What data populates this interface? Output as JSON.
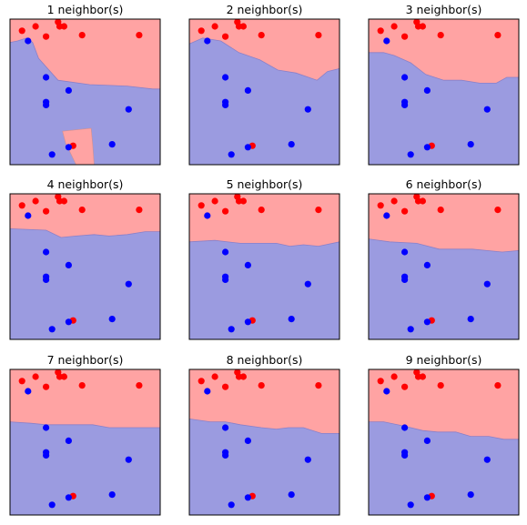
{
  "chart_data": {
    "type": "scatter",
    "description_of_kind": "k-nearest-neighbors decision boundaries",
    "class_colors": {
      "red": "#ff0000",
      "blue": "#0000ff"
    },
    "region_colors": {
      "red": "#ffa3a3",
      "blue": "#9b9be0"
    },
    "xlim": [
      0,
      1
    ],
    "ylim": [
      0,
      1
    ],
    "points": {
      "red": [
        [
          0.08,
          0.92
        ],
        [
          0.17,
          0.95
        ],
        [
          0.32,
          0.98
        ],
        [
          0.33,
          0.95
        ],
        [
          0.36,
          0.95
        ],
        [
          0.24,
          0.88
        ],
        [
          0.48,
          0.89
        ],
        [
          0.86,
          0.89
        ],
        [
          0.42,
          0.13
        ]
      ],
      "blue": [
        [
          0.12,
          0.85
        ],
        [
          0.24,
          0.6
        ],
        [
          0.24,
          0.43
        ],
        [
          0.24,
          0.41
        ],
        [
          0.39,
          0.51
        ],
        [
          0.79,
          0.38
        ],
        [
          0.68,
          0.14
        ],
        [
          0.39,
          0.12
        ],
        [
          0.28,
          0.07
        ]
      ]
    },
    "panels": [
      {
        "title": "1 neighbor(s)",
        "boundary": [
          [
            0,
            0.84
          ],
          [
            0.05,
            0.85
          ],
          [
            0.11,
            0.87
          ],
          [
            0.15,
            0.84
          ],
          [
            0.19,
            0.73
          ],
          [
            0.32,
            0.58
          ],
          [
            0.53,
            0.55
          ],
          [
            0.78,
            0.54
          ],
          [
            0.95,
            0.52
          ],
          [
            1,
            0.52
          ]
        ],
        "islands": [
          [
            [
              0.35,
              0.23
            ],
            [
              0.54,
              0.25
            ],
            [
              0.55,
              0.14
            ],
            [
              0.56,
              0.0
            ],
            [
              0.44,
              0.0
            ],
            [
              0.37,
              0.15
            ]
          ]
        ]
      },
      {
        "title": "2 neighbor(s)",
        "boundary": [
          [
            0,
            0.83
          ],
          [
            0.09,
            0.87
          ],
          [
            0.21,
            0.85
          ],
          [
            0.33,
            0.77
          ],
          [
            0.47,
            0.72
          ],
          [
            0.59,
            0.65
          ],
          [
            0.71,
            0.63
          ],
          [
            0.85,
            0.58
          ],
          [
            0.92,
            0.64
          ],
          [
            1,
            0.66
          ]
        ],
        "islands": []
      },
      {
        "title": "3 neighbor(s)",
        "boundary": [
          [
            0,
            0.77
          ],
          [
            0.1,
            0.77
          ],
          [
            0.17,
            0.75
          ],
          [
            0.28,
            0.7
          ],
          [
            0.38,
            0.62
          ],
          [
            0.5,
            0.58
          ],
          [
            0.62,
            0.58
          ],
          [
            0.74,
            0.56
          ],
          [
            0.85,
            0.56
          ],
          [
            0.92,
            0.6
          ],
          [
            1,
            0.6
          ]
        ],
        "islands": []
      },
      {
        "title": "4 neighbor(s)",
        "boundary": [
          [
            0,
            0.76
          ],
          [
            0.24,
            0.75
          ],
          [
            0.34,
            0.7
          ],
          [
            0.44,
            0.71
          ],
          [
            0.56,
            0.72
          ],
          [
            0.66,
            0.71
          ],
          [
            0.78,
            0.72
          ],
          [
            0.9,
            0.74
          ],
          [
            1,
            0.74
          ]
        ],
        "islands": []
      },
      {
        "title": "5 neighbor(s)",
        "boundary": [
          [
            0,
            0.67
          ],
          [
            0.17,
            0.68
          ],
          [
            0.34,
            0.66
          ],
          [
            0.44,
            0.66
          ],
          [
            0.58,
            0.66
          ],
          [
            0.67,
            0.64
          ],
          [
            0.76,
            0.65
          ],
          [
            0.86,
            0.64
          ],
          [
            1,
            0.67
          ]
        ],
        "islands": []
      },
      {
        "title": "6 neighbor(s)",
        "boundary": [
          [
            0,
            0.69
          ],
          [
            0.14,
            0.67
          ],
          [
            0.32,
            0.66
          ],
          [
            0.47,
            0.62
          ],
          [
            0.58,
            0.62
          ],
          [
            0.69,
            0.62
          ],
          [
            0.79,
            0.61
          ],
          [
            0.89,
            0.6
          ],
          [
            1,
            0.61
          ]
        ],
        "islands": []
      },
      {
        "title": "7 neighbor(s)",
        "boundary": [
          [
            0,
            0.64
          ],
          [
            0.14,
            0.63
          ],
          [
            0.24,
            0.62
          ],
          [
            0.4,
            0.62
          ],
          [
            0.55,
            0.62
          ],
          [
            0.66,
            0.6
          ],
          [
            0.77,
            0.6
          ],
          [
            0.9,
            0.6
          ],
          [
            1,
            0.6
          ]
        ],
        "islands": []
      },
      {
        "title": "8 neighbor(s)",
        "boundary": [
          [
            0,
            0.66
          ],
          [
            0.14,
            0.64
          ],
          [
            0.24,
            0.64
          ],
          [
            0.34,
            0.62
          ],
          [
            0.48,
            0.6
          ],
          [
            0.58,
            0.59
          ],
          [
            0.66,
            0.6
          ],
          [
            0.76,
            0.6
          ],
          [
            0.88,
            0.56
          ],
          [
            1,
            0.56
          ]
        ],
        "islands": []
      },
      {
        "title": "9 neighbor(s)",
        "boundary": [
          [
            0,
            0.64
          ],
          [
            0.1,
            0.64
          ],
          [
            0.24,
            0.61
          ],
          [
            0.36,
            0.58
          ],
          [
            0.46,
            0.57
          ],
          [
            0.58,
            0.57
          ],
          [
            0.68,
            0.54
          ],
          [
            0.8,
            0.54
          ],
          [
            0.9,
            0.52
          ],
          [
            1,
            0.52
          ]
        ],
        "islands": []
      }
    ]
  }
}
